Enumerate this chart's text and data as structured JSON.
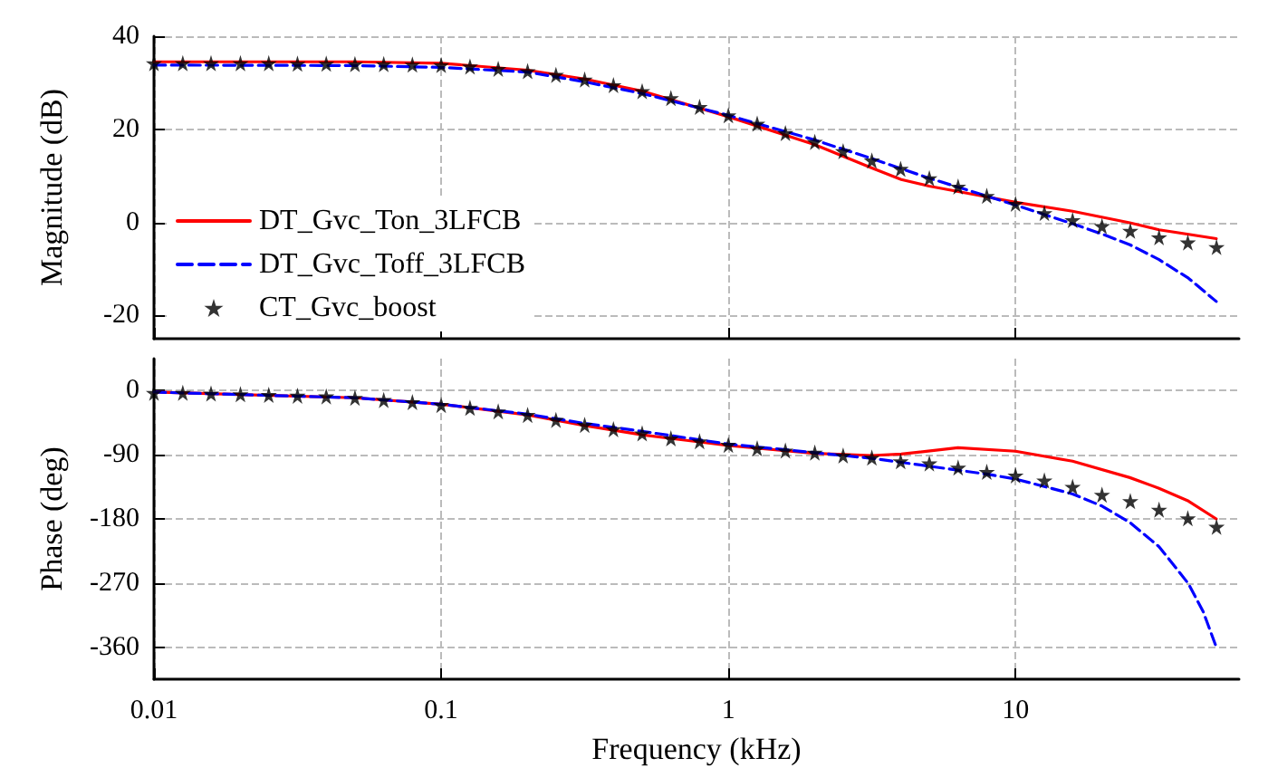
{
  "chart_data": [
    {
      "type": "line",
      "ylabel": "Magnitude (dB)",
      "xlim": [
        0.01,
        60
      ],
      "xticks": [
        0.01,
        0.1,
        1,
        10
      ],
      "ylim": [
        -25,
        40
      ],
      "yticks": [
        -20,
        0,
        20,
        40
      ],
      "log": "x",
      "grid": true,
      "legend": "bottom left",
      "tick_labels": "y",
      "series": [
        {
          "name": "DT_Gvc_Ton_3LFCB",
          "type": "line",
          "color": "#ff0000",
          "line_style": "solid",
          "marker": "none",
          "x": [
            0.01,
            0.05,
            0.1,
            0.2,
            0.316,
            0.5,
            1,
            2,
            3.16,
            4,
            5,
            7.9,
            10,
            15.8,
            25,
            31.6,
            50
          ],
          "values": [
            34.5,
            34.5,
            34.2,
            32.7,
            30.8,
            28.2,
            22.7,
            16.7,
            11.7,
            9.2,
            7.8,
            5.5,
            4.3,
            2.4,
            -0.1,
            -1.6,
            -3.5
          ]
        },
        {
          "name": "DT_Gvc_Toff_3LFCB",
          "type": "line",
          "color": "#0000ff",
          "line_style": "dashed",
          "marker": "none",
          "x": [
            0.01,
            0.05,
            0.1,
            0.2,
            0.316,
            0.5,
            1,
            2,
            3.16,
            5,
            7.9,
            10,
            15.8,
            20,
            25,
            31.6,
            40,
            50
          ],
          "values": [
            33.8,
            33.7,
            33.3,
            32.3,
            30.2,
            27.7,
            23,
            17.7,
            13.7,
            9.5,
            5.7,
            3.7,
            -0.3,
            -2.5,
            -4.8,
            -8,
            -12,
            -17
          ]
        },
        {
          "name": "CT_Gvc_boost",
          "type": "scatter",
          "color": "#000000",
          "marker": "star",
          "x": [
            0.01,
            0.0126,
            0.0158,
            0.02,
            0.0251,
            0.0316,
            0.0398,
            0.0501,
            0.0631,
            0.0794,
            0.1,
            0.126,
            0.158,
            0.2,
            0.251,
            0.316,
            0.398,
            0.501,
            0.631,
            0.794,
            1,
            1.26,
            1.58,
            2,
            2.51,
            3.16,
            3.98,
            5.01,
            6.31,
            7.94,
            10,
            12.6,
            15.8,
            20,
            25.1,
            31.6,
            39.8,
            50.1
          ],
          "values": [
            34.2,
            34.2,
            34.2,
            34.2,
            34.2,
            34.1,
            34.1,
            34,
            34,
            33.9,
            33.8,
            33.5,
            33,
            32.5,
            31.7,
            30.7,
            29.5,
            28.2,
            26.7,
            24.8,
            23,
            21.2,
            19.2,
            17.3,
            15.3,
            13.3,
            11.5,
            9.5,
            7.7,
            5.7,
            4,
            2,
            0.5,
            -0.8,
            -1.8,
            -3.2,
            -4.3,
            -5.3
          ]
        }
      ]
    },
    {
      "type": "line",
      "xlabel": "Frequency (kHz)",
      "ylabel": "Phase (deg)",
      "xlim": [
        0.01,
        60
      ],
      "xticks": [
        0.01,
        0.1,
        1,
        10
      ],
      "ylim": [
        -405,
        45
      ],
      "yticks": [
        -360,
        -270,
        -180,
        -90,
        0
      ],
      "log": "x",
      "grid": true,
      "series": [
        {
          "type": "line",
          "color": "#ff0000",
          "line_style": "solid",
          "marker": "none",
          "x": [
            0.01,
            0.05,
            0.1,
            0.2,
            0.316,
            0.5,
            1,
            2,
            3.16,
            4,
            6.3,
            10,
            15.8,
            25,
            31.6,
            40,
            50
          ],
          "values": [
            -2,
            -10,
            -19,
            -34,
            -49,
            -62,
            -77,
            -88,
            -91,
            -89,
            -80,
            -85,
            -99,
            -122,
            -137,
            -155,
            -180
          ]
        },
        {
          "type": "line",
          "color": "#0000ff",
          "line_style": "dashed",
          "marker": "none",
          "x": [
            0.01,
            0.05,
            0.1,
            0.2,
            0.316,
            0.5,
            1,
            2,
            3.16,
            5,
            7.9,
            10,
            15.8,
            20,
            25,
            31.6,
            40,
            45,
            50
          ],
          "values": [
            -2,
            -10,
            -19,
            -33,
            -46,
            -57,
            -75,
            -87,
            -95,
            -106,
            -117,
            -124,
            -145,
            -162,
            -185,
            -219,
            -271,
            -310,
            -360
          ]
        },
        {
          "type": "scatter",
          "color": "#000000",
          "marker": "star",
          "x": [
            0.01,
            0.0126,
            0.0158,
            0.02,
            0.0251,
            0.0316,
            0.0398,
            0.0501,
            0.0631,
            0.0794,
            0.1,
            0.126,
            0.158,
            0.2,
            0.251,
            0.316,
            0.398,
            0.501,
            0.631,
            0.794,
            1,
            1.26,
            1.58,
            2,
            2.51,
            3.16,
            3.98,
            5.01,
            6.31,
            7.94,
            10,
            12.6,
            15.8,
            20,
            25.1,
            31.6,
            39.8,
            50.1
          ],
          "values": [
            -3,
            -3,
            -4,
            -5,
            -6,
            -7,
            -8,
            -10,
            -13,
            -16,
            -20,
            -24,
            -29,
            -34,
            -41,
            -48,
            -54,
            -60,
            -67,
            -71,
            -76,
            -81,
            -84,
            -87,
            -91,
            -94,
            -99,
            -102,
            -108,
            -114,
            -119,
            -126,
            -135,
            -146,
            -155,
            -167,
            -179,
            -191
          ]
        }
      ]
    }
  ]
}
